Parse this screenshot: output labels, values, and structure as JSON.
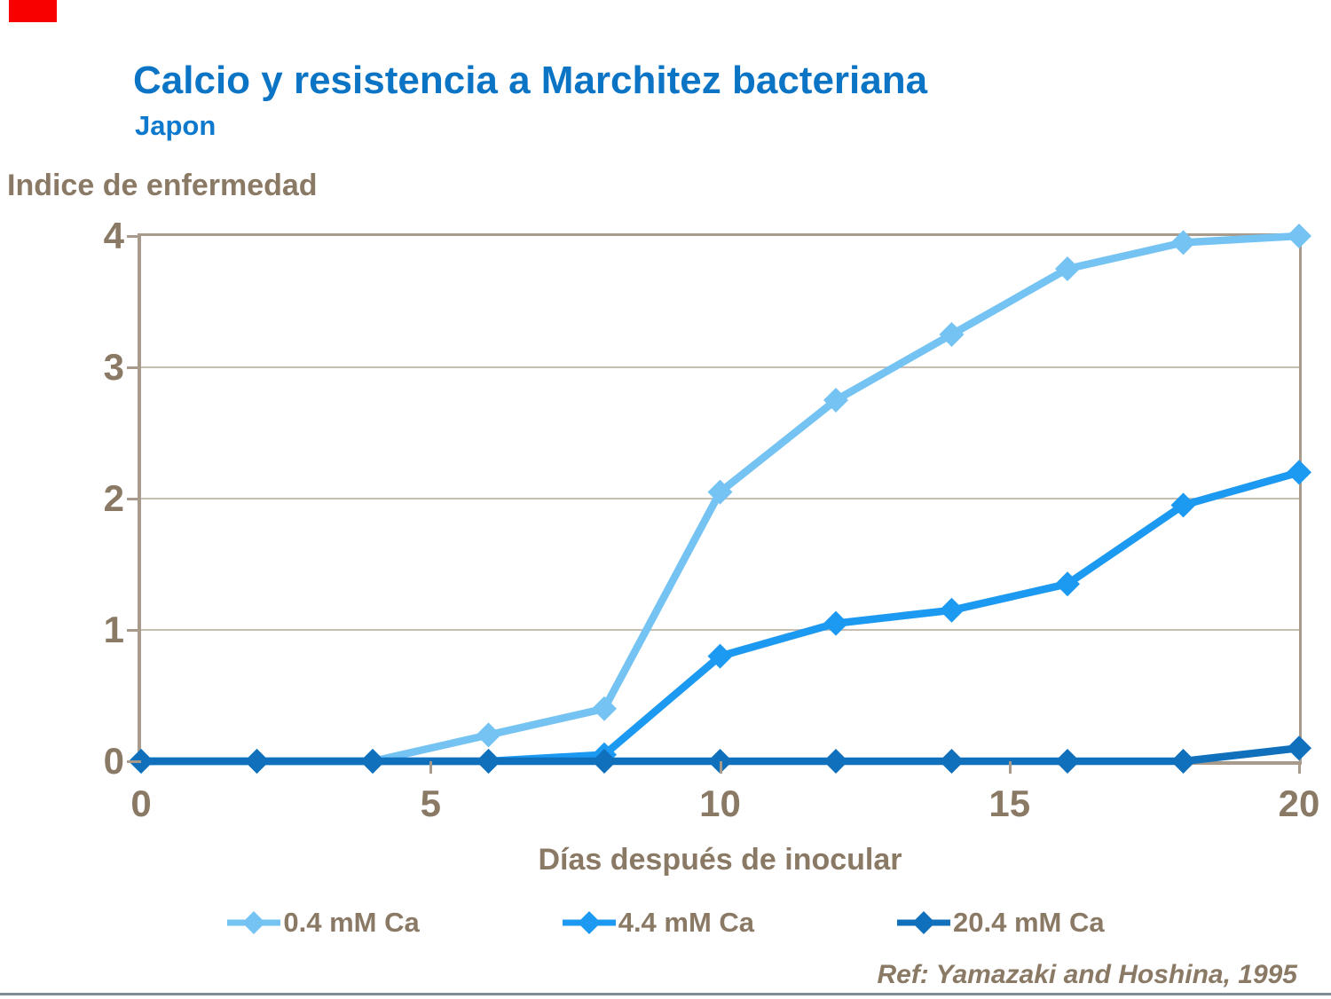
{
  "colors": {
    "title_blue": "#0b74c4",
    "subtitle_blue": "#0f7acd",
    "taupe_text": "#8a7964",
    "axis": "#a89b8b",
    "gridline": "#c8beb2",
    "red_box": "#f80000",
    "bottom_rule": "#808c96",
    "series_light_blue": "#74c3f3",
    "series_medium_blue": "#1c99f1",
    "series_dark_blue": "#1170bc"
  },
  "header": {
    "title": "Calcio y resistencia a Marchitez bacteriana",
    "subtitle": "Japon"
  },
  "chart_data": {
    "type": "line",
    "title": "Calcio y resistencia a Marchitez bacteriana",
    "subtitle": "Japon",
    "ylabel": "Indice de enfermedad",
    "xlabel": "Días después de inocular",
    "footnote": "Ref: Yamazaki and Hoshina, 1995",
    "x": [
      0,
      2,
      4,
      6,
      8,
      10,
      12,
      14,
      16,
      18,
      20
    ],
    "xlim": [
      0,
      20
    ],
    "ylim": [
      0,
      4
    ],
    "x_ticks": [
      0,
      5,
      10,
      15,
      20
    ],
    "y_ticks": [
      0,
      1,
      2,
      3,
      4
    ],
    "grid": "horizontal",
    "legend_position": "bottom",
    "marker": "diamond",
    "series": [
      {
        "name": "0.4 mM Ca",
        "color": "#74c3f3",
        "values": [
          0,
          0,
          0,
          0.2,
          0.4,
          2.05,
          2.75,
          3.25,
          3.75,
          3.95,
          4.0
        ]
      },
      {
        "name": "4.4 mM Ca",
        "color": "#1c99f1",
        "values": [
          0,
          0,
          0,
          0,
          0.05,
          0.8,
          1.05,
          1.15,
          1.35,
          1.95,
          2.2
        ]
      },
      {
        "name": "20.4 mM Ca",
        "color": "#1170bc",
        "values": [
          0,
          0,
          0,
          0,
          0,
          0,
          0,
          0,
          0,
          0,
          0.1
        ]
      }
    ]
  }
}
